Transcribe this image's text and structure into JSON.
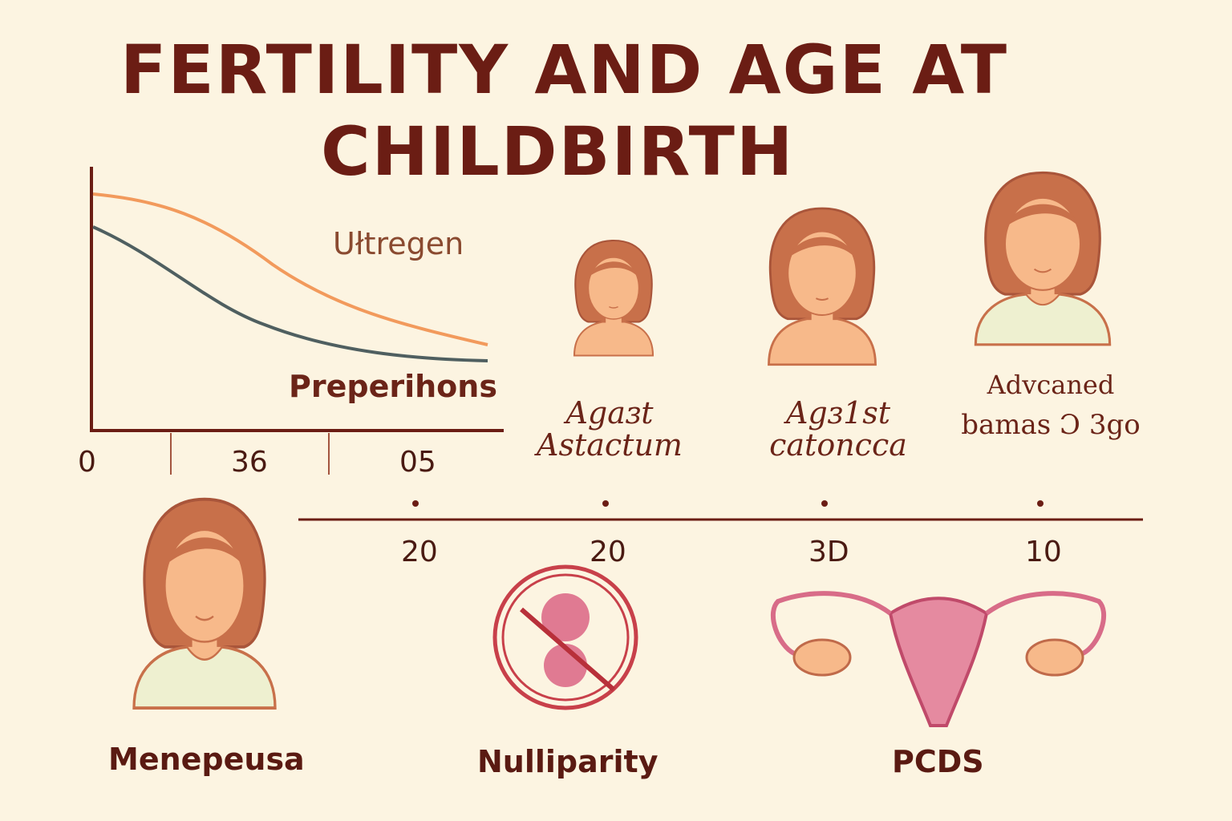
{
  "title": {
    "line1": "FERTILITY AND AGE AT",
    "line2": "CHILDBIRTH"
  },
  "graph": {
    "series_labels": [
      "Ułtregen",
      "Preperihons"
    ],
    "x_ticks": [
      "0",
      "36",
      "05"
    ],
    "colors": {
      "upper": "#f29a5c",
      "lower": "#4f5f60",
      "axis": "#6b1d14"
    }
  },
  "stages": [
    {
      "line1": "Agaɜt",
      "line2": "Astactum"
    },
    {
      "line1": "Agɜ1st",
      "line2": "catoncca"
    },
    {
      "line1": "Advcaned",
      "line2": "bamas Ɔ 3go"
    }
  ],
  "timeline": {
    "values": [
      "20",
      "20",
      "3D",
      "10"
    ]
  },
  "bottom": {
    "labels": [
      "Menepeusa",
      "Nulliparity",
      "PCDS"
    ]
  },
  "colors": {
    "background": "#fcf4e1",
    "title": "#6b1d14",
    "hair": "#c8704a",
    "skin": "#f7b98a",
    "shirt": "#eef0d0",
    "pink": "#e07a92"
  }
}
